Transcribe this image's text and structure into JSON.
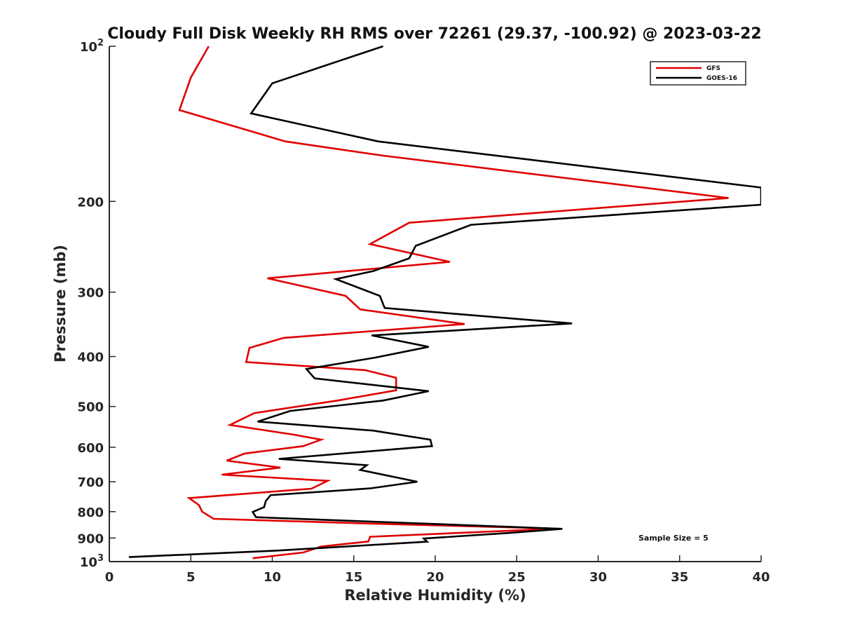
{
  "chart_data": {
    "type": "line",
    "title": "Cloudy Full Disk Weekly RH RMS over 72261 (29.37, -100.92) @ 2023-03-22",
    "xlabel": "Relative Humidity (%)",
    "ylabel": "Pressure (mb)",
    "xlim": [
      0,
      40
    ],
    "ylim": [
      100,
      1000
    ],
    "y_scale": "log",
    "y_reversed": true,
    "x_ticks": [
      0,
      5,
      10,
      15,
      20,
      25,
      30,
      35,
      40
    ],
    "y_ticks": [
      {
        "value": 100,
        "label": "10",
        "sup": "2"
      },
      {
        "value": 200,
        "label": "200",
        "sup": ""
      },
      {
        "value": 300,
        "label": "300",
        "sup": ""
      },
      {
        "value": 400,
        "label": "400",
        "sup": ""
      },
      {
        "value": 500,
        "label": "500",
        "sup": ""
      },
      {
        "value": 600,
        "label": "600",
        "sup": ""
      },
      {
        "value": 700,
        "label": "700",
        "sup": ""
      },
      {
        "value": 800,
        "label": "800",
        "sup": ""
      },
      {
        "value": 900,
        "label": "900",
        "sup": ""
      },
      {
        "value": 1000,
        "label": "10",
        "sup": "3"
      }
    ],
    "grid": false,
    "legend_position": "top-right",
    "annotation": "Sample Size = 5",
    "series": [
      {
        "name": "GFS",
        "color": "#e00000",
        "points": [
          [
            6.1,
            100
          ],
          [
            5.0,
            115
          ],
          [
            4.3,
            133
          ],
          [
            10.8,
            153
          ],
          [
            16.8,
            163
          ],
          [
            38.0,
            197
          ],
          [
            18.4,
            220
          ],
          [
            16.0,
            242
          ],
          [
            20.9,
            262
          ],
          [
            9.7,
            282
          ],
          [
            14.5,
            305
          ],
          [
            15.4,
            324
          ],
          [
            21.8,
            346
          ],
          [
            10.7,
            368
          ],
          [
            8.6,
            385
          ],
          [
            8.4,
            410
          ],
          [
            15.7,
            425
          ],
          [
            17.6,
            440
          ],
          [
            17.6,
            465
          ],
          [
            14.0,
            487
          ],
          [
            8.9,
            515
          ],
          [
            7.4,
            543
          ],
          [
            11.3,
            567
          ],
          [
            13.0,
            580
          ],
          [
            11.9,
            597
          ],
          [
            8.3,
            617
          ],
          [
            7.2,
            637
          ],
          [
            10.5,
            657
          ],
          [
            6.9,
            678
          ],
          [
            13.4,
            697
          ],
          [
            12.4,
            722
          ],
          [
            4.9,
            753
          ],
          [
            5.5,
            777
          ],
          [
            5.7,
            800
          ],
          [
            6.4,
            826
          ],
          [
            15.0,
            842
          ],
          [
            27.5,
            863
          ],
          [
            16.0,
            895
          ],
          [
            15.9,
            914
          ],
          [
            13.0,
            935
          ],
          [
            11.9,
            960
          ],
          [
            8.8,
            985
          ]
        ]
      },
      {
        "name": "GOES-16",
        "color": "#000000",
        "points": [
          [
            16.8,
            100
          ],
          [
            10.0,
            118
          ],
          [
            8.7,
            135
          ],
          [
            16.5,
            153
          ],
          [
            40.0,
            188
          ],
          [
            40.0,
            203
          ],
          [
            22.2,
            222
          ],
          [
            18.8,
            244
          ],
          [
            18.4,
            258
          ],
          [
            16.2,
            273
          ],
          [
            13.9,
            283
          ],
          [
            16.6,
            305
          ],
          [
            16.9,
            322
          ],
          [
            28.4,
            345
          ],
          [
            16.1,
            364
          ],
          [
            19.6,
            383
          ],
          [
            16.3,
            402
          ],
          [
            12.1,
            423
          ],
          [
            12.6,
            441
          ],
          [
            19.6,
            467
          ],
          [
            16.8,
            487
          ],
          [
            11.1,
            510
          ],
          [
            9.1,
            535
          ],
          [
            16.2,
            557
          ],
          [
            19.7,
            580
          ],
          [
            19.8,
            597
          ],
          [
            10.4,
            632
          ],
          [
            15.8,
            650
          ],
          [
            15.4,
            664
          ],
          [
            18.9,
            700
          ],
          [
            16.0,
            721
          ],
          [
            9.9,
            743
          ],
          [
            9.6,
            763
          ],
          [
            9.5,
            784
          ],
          [
            8.8,
            801
          ],
          [
            9.0,
            820
          ],
          [
            27.8,
            864
          ],
          [
            24.5,
            880
          ],
          [
            19.3,
            902
          ],
          [
            19.5,
            915
          ],
          [
            10.3,
            952
          ],
          [
            1.2,
            980
          ]
        ]
      }
    ]
  }
}
